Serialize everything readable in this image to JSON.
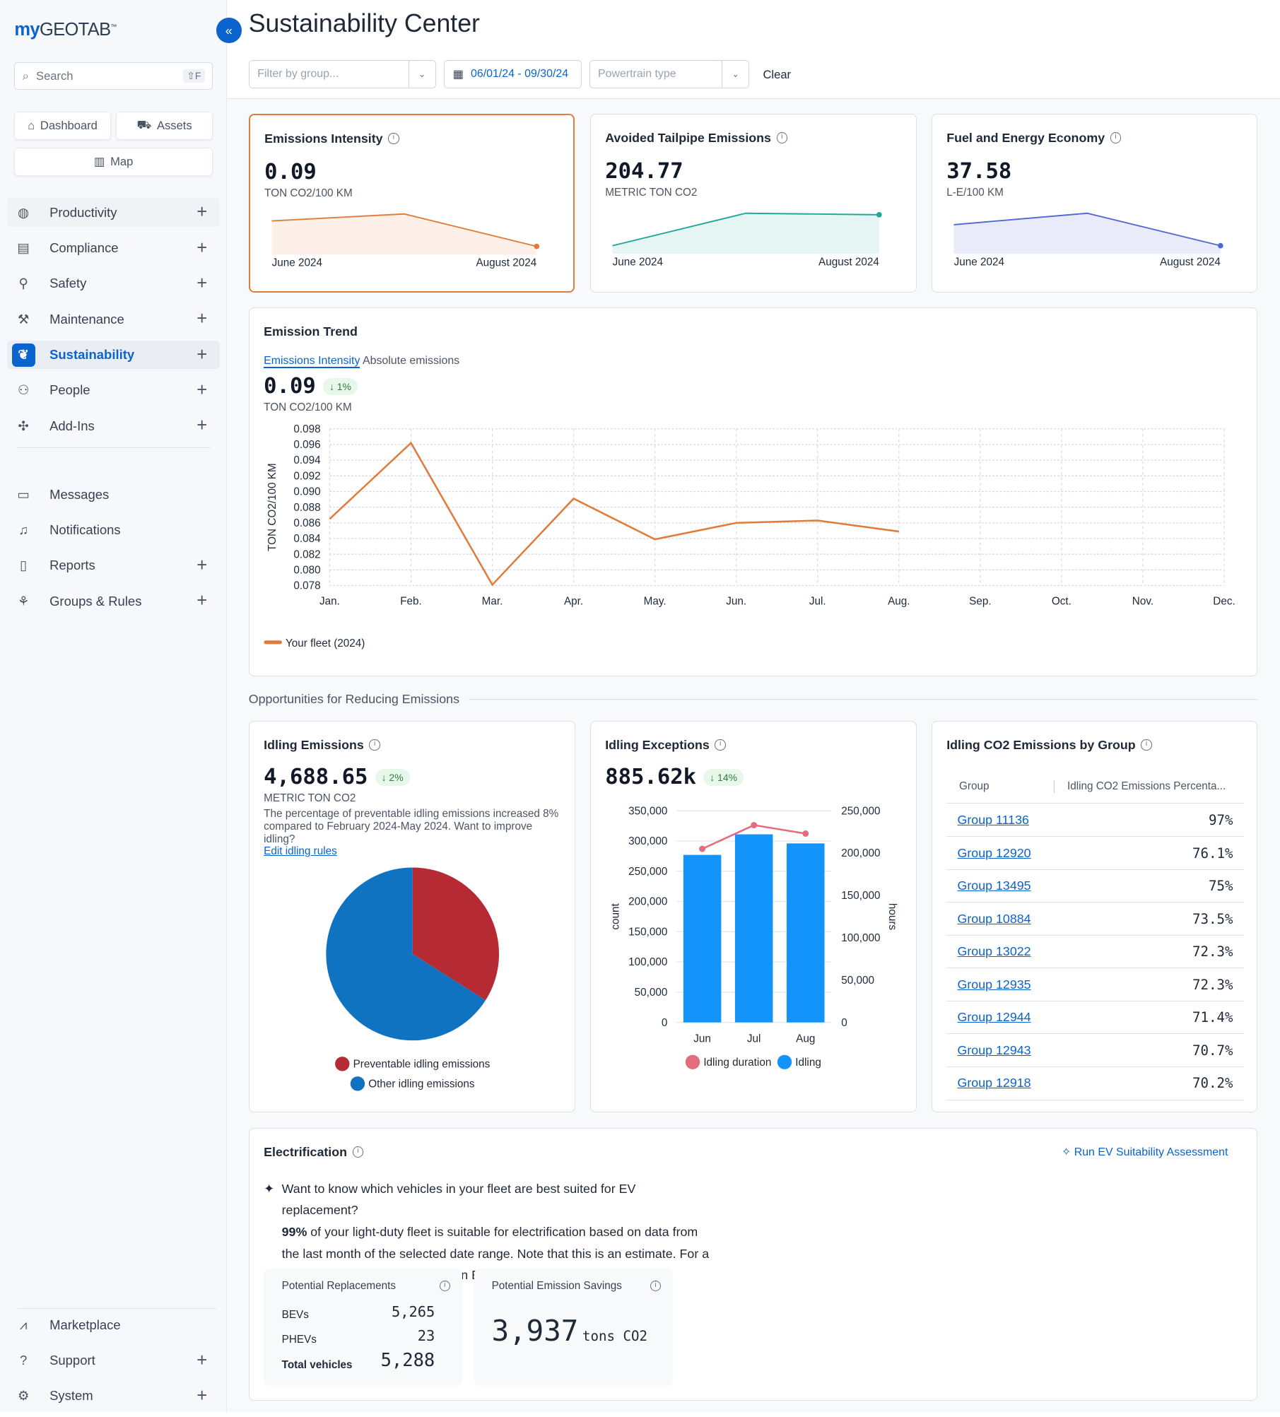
{
  "sidebar": {
    "logo": "myGEOTAB",
    "search_placeholder": "Search",
    "search_shortcut": "⇧F",
    "quick": [
      {
        "label": "Dashboard",
        "icon": "home-icon"
      },
      {
        "label": "Assets",
        "icon": "truck-icon"
      },
      {
        "label": "Map",
        "icon": "map-icon"
      }
    ],
    "items": [
      {
        "label": "Productivity",
        "icon": "globe-icon",
        "expand": true
      },
      {
        "label": "Compliance",
        "icon": "clipboard-icon",
        "expand": true
      },
      {
        "label": "Safety",
        "icon": "safety-icon",
        "expand": true
      },
      {
        "label": "Maintenance",
        "icon": "wrench-icon",
        "expand": true
      },
      {
        "label": "Sustainability",
        "icon": "leaf-icon",
        "expand": true,
        "active": true
      },
      {
        "label": "People",
        "icon": "people-icon",
        "expand": true
      },
      {
        "label": "Add-Ins",
        "icon": "puzzle-icon",
        "expand": true
      }
    ],
    "items2": [
      {
        "label": "Messages",
        "icon": "messages-icon",
        "expand": false
      },
      {
        "label": "Notifications",
        "icon": "bell-icon",
        "expand": false
      },
      {
        "label": "Reports",
        "icon": "report-icon",
        "expand": true
      },
      {
        "label": "Groups & Rules",
        "icon": "groups-icon",
        "expand": true
      }
    ],
    "bottom": [
      {
        "label": "Marketplace",
        "icon": "marketplace-icon",
        "expand": false
      },
      {
        "label": "Support",
        "icon": "help-icon",
        "expand": true
      },
      {
        "label": "System",
        "icon": "gear-icon",
        "expand": true
      }
    ]
  },
  "header": {
    "title": "Sustainability Center",
    "group_placeholder": "Filter by group...",
    "date_range": "06/01/24 - 09/30/24",
    "powertrain_placeholder": "Powertrain type",
    "clear": "Clear"
  },
  "kpis": [
    {
      "title": "Emissions Intensity",
      "value": "0.09",
      "unit": "TON CO2/100 KM",
      "start": "June 2024",
      "end": "August 2024",
      "color": "#e07b3a",
      "fill": "#fdf0e8",
      "spark": [
        0.086,
        0.0863,
        0.0849
      ]
    },
    {
      "title": "Avoided Tailpipe Emissions",
      "value": "204.77",
      "unit": "METRIC TON CO2",
      "start": "June 2024",
      "end": "August 2024",
      "color": "#1fa89a",
      "fill": "#e5f5f3",
      "spark": [
        150,
        215,
        212
      ]
    },
    {
      "title": "Fuel and Energy Economy",
      "value": "37.58",
      "unit": "L-E/100 KM",
      "start": "June 2024",
      "end": "August 2024",
      "color": "#5468d4",
      "fill": "#e9ebf9",
      "spark": [
        38.5,
        39.0,
        37.58
      ]
    }
  ],
  "trend": {
    "title": "Emission Trend",
    "tab_active": "Emissions Intensity",
    "tab_other": "Absolute emissions",
    "value": "0.09",
    "change": "↓ 1%",
    "unit": "TON CO2/100 KM"
  },
  "chart_data": [
    {
      "type": "line",
      "title": "",
      "ylabel": "TON CO2/100 KM",
      "categories": [
        "Jan.",
        "Feb.",
        "Mar.",
        "Apr.",
        "May.",
        "Jun.",
        "Jul.",
        "Aug.",
        "Sep.",
        "Oct.",
        "Nov.",
        "Dec."
      ],
      "series": [
        {
          "name": "Your fleet (2024)",
          "color": "#e07b3a",
          "values": [
            0.0865,
            0.0962,
            0.0781,
            0.0891,
            0.0839,
            0.086,
            0.0863,
            0.0849,
            null,
            null,
            null,
            null
          ]
        }
      ],
      "ylim": [
        0.078,
        0.098
      ],
      "yticks": [
        "0.098",
        "0.096",
        "0.094",
        "0.092",
        "0.090",
        "0.088",
        "0.086",
        "0.084",
        "0.082",
        "0.080",
        "0.078"
      ],
      "grid": true,
      "legend": "bottom-left"
    },
    {
      "type": "pie",
      "slices": [
        {
          "name": "Preventable idling emissions",
          "value": 34,
          "color": "#b52a33"
        },
        {
          "name": "Other idling emissions",
          "value": 66,
          "color": "#0f73c2"
        }
      ],
      "legend": "bottom"
    },
    {
      "type": "bar",
      "categories": [
        "Jun",
        "Jul",
        "Aug"
      ],
      "ylabel": "count",
      "y2label": "hours",
      "ylim": [
        0,
        350000
      ],
      "y2lim": [
        0,
        250000
      ],
      "yticks": [
        "350,000",
        "300,000",
        "250,000",
        "200,000",
        "150,000",
        "100,000",
        "50,000",
        "0"
      ],
      "y2ticks": [
        "250,000",
        "200,000",
        "150,000",
        "100,000",
        "50,000",
        "0"
      ],
      "series": [
        {
          "name": "Idling duration",
          "type": "line",
          "axis": "right",
          "color": "#e46c7c",
          "values": [
            205000,
            233000,
            223000
          ]
        },
        {
          "name": "Idling",
          "type": "bar",
          "axis": "left",
          "color": "#1294fb",
          "values": [
            277000,
            311000,
            296000
          ]
        }
      ],
      "legend": "bottom"
    }
  ],
  "opportunities": {
    "label": "Opportunities for Reducing Emissions"
  },
  "idling": {
    "title": "Idling Emissions",
    "value": "4,688.65",
    "change": "↓ 2%",
    "unit": "METRIC TON CO2",
    "text": "The percentage of preventable idling emissions increased 8% compared to February 2024-May 2024. Want to improve idling?",
    "link": "Edit idling rules"
  },
  "exceptions": {
    "title": "Idling Exceptions",
    "value": "885.62k",
    "change": "↓ 14%"
  },
  "groups": {
    "title": "Idling CO2 Emissions by Group",
    "col1": "Group",
    "col2": "Idling CO2 Emissions Percenta...",
    "rows": [
      {
        "g": "Group 11136",
        "v": "97%"
      },
      {
        "g": "Group 12920",
        "v": "76.1%"
      },
      {
        "g": "Group 13495",
        "v": "75%"
      },
      {
        "g": "Group 10884",
        "v": "73.5%"
      },
      {
        "g": "Group 13022",
        "v": "72.3%"
      },
      {
        "g": "Group 12935",
        "v": "72.3%"
      },
      {
        "g": "Group 12944",
        "v": "71.4%"
      },
      {
        "g": "Group 12943",
        "v": "70.7%"
      },
      {
        "g": "Group 12918",
        "v": "70.2%"
      }
    ]
  },
  "electrification": {
    "title": "Electrification",
    "run": "Run EV Suitability Assessment",
    "question": "Want to know which vehicles in your fleet are best suited for EV replacement?",
    "pct": "99%",
    "text": " of your light-duty fleet is suitable for electrification based on data from the last month of the selected date range. Note that this is an estimate. For a more precise assessment, run an EV Suitability Assessment report.",
    "replacements": {
      "title": "Potential Replacements",
      "bev_label": "BEVs",
      "bev": "5,265",
      "phev_label": "PHEVs",
      "phev": "23",
      "total_label": "Total vehicles",
      "total": "5,288"
    },
    "savings": {
      "title": "Potential Emission Savings",
      "value": "3,937",
      "unit": "tons CO2"
    }
  }
}
